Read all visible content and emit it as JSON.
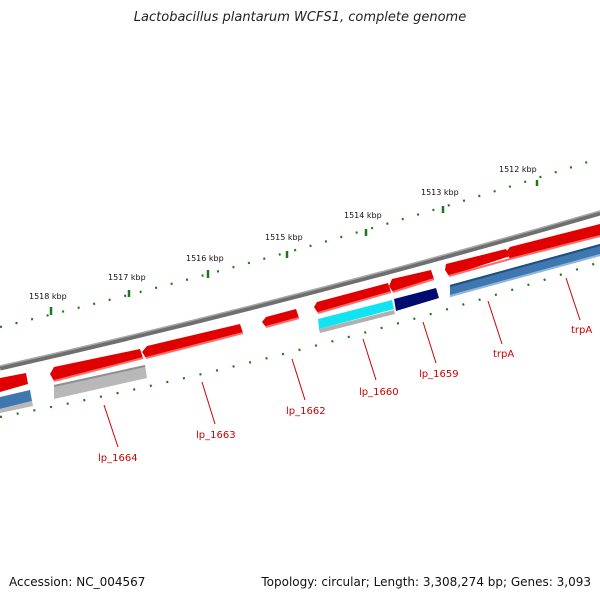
{
  "title": "Lactobacillus plantarum WCFS1, complete genome",
  "accession": "Accession: NC_004567",
  "stats": "Topology: circular; Length: 3,308,274 bp; Genes: 3,093",
  "colors": {
    "backbone": "#7a7a7a",
    "forward_cds": "#e00000",
    "reverse_cds": "#3f78b0",
    "pseudo": "#b8b8b8",
    "highlight_cyan": "#11e4f0",
    "highlight_navy": "#000b70",
    "tick": "#1a7a1a",
    "label": "#cc0000"
  },
  "ruler": {
    "unit": "kbp",
    "ticks": [
      {
        "label": "1512 kbp"
      },
      {
        "label": "1513 kbp"
      },
      {
        "label": "1514 kbp"
      },
      {
        "label": "1515 kbp"
      },
      {
        "label": "1516 kbp"
      },
      {
        "label": "1517 kbp"
      },
      {
        "label": "1518 kbp"
      }
    ]
  },
  "gene_labels": [
    {
      "name": "trpA"
    },
    {
      "name": "trpA"
    },
    {
      "name": "lp_1659"
    },
    {
      "name": "lp_1660"
    },
    {
      "name": "lp_1662"
    },
    {
      "name": "lp_1663"
    },
    {
      "name": "lp_1664"
    }
  ]
}
